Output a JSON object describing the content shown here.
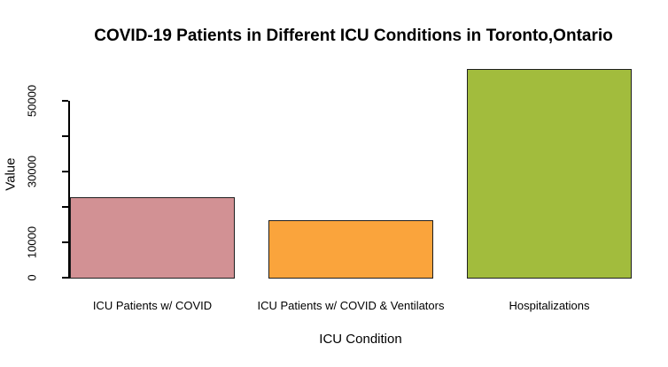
{
  "chart_data": {
    "type": "bar",
    "title": "COVID-19 Patients in Different ICU Conditions in Toronto,Ontario",
    "xlabel": "ICU Condition",
    "ylabel": "Value",
    "categories": [
      "ICU Patients w/ COVID",
      "ICU Patients w/ COVID & Ventilators",
      "Hospitalizations"
    ],
    "values": [
      22700,
      16200,
      58900
    ],
    "bar_colors": [
      "#D29194",
      "#FAA43C",
      "#A2BC3D"
    ],
    "bar_border_color": "#1F1F1F",
    "axis_color": "#000000",
    "background_color": "#FFFFFF",
    "ylim": [
      0,
      60000
    ],
    "yticks": [
      0,
      10000,
      20000,
      30000,
      40000,
      50000
    ],
    "ytick_labels": [
      "0",
      "10000",
      "",
      "30000",
      "",
      "50000"
    ],
    "grid": false,
    "legend": "none"
  }
}
